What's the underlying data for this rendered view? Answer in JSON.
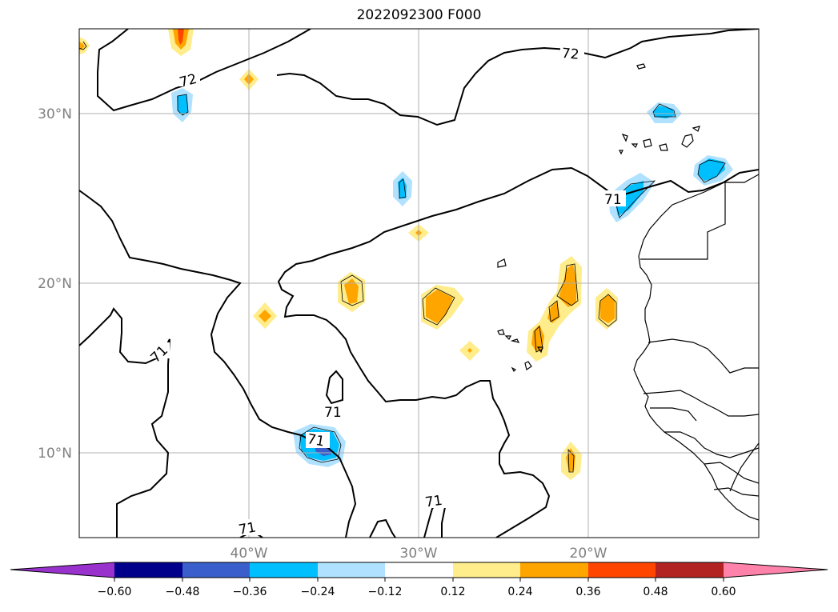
{
  "title": "2022092300 F000",
  "map": {
    "lat_labels": [
      "30°N",
      "20°N",
      "10°N"
    ],
    "lon_labels": [
      "40°W",
      "30°W",
      "20°W"
    ],
    "contour_labels": [
      "72",
      "72",
      "71",
      "71",
      "71",
      "71",
      "71",
      "71"
    ]
  },
  "colorbar": {
    "colors": [
      "#9932CC",
      "#00008B",
      "#3A5FCD",
      "#00BFFF",
      "#B0E2FF",
      "#FFFFFF",
      "#FFEC8B",
      "#FFA500",
      "#FF4500",
      "#B22222",
      "#FF82AB"
    ],
    "ticks": [
      "−0.60",
      "−0.48",
      "−0.36",
      "−0.24",
      "−0.12",
      "0.12",
      "0.24",
      "0.36",
      "0.48",
      "0.60"
    ]
  },
  "colors": {
    "blue_light": "#B0E2FF",
    "blue": "#00BFFF",
    "blue_dark": "#3A5FCD",
    "yellow": "#FFEC8B",
    "orange": "#FFA500",
    "red": "#FF4500",
    "line": "#000000",
    "grid": "#b0b0b0"
  }
}
